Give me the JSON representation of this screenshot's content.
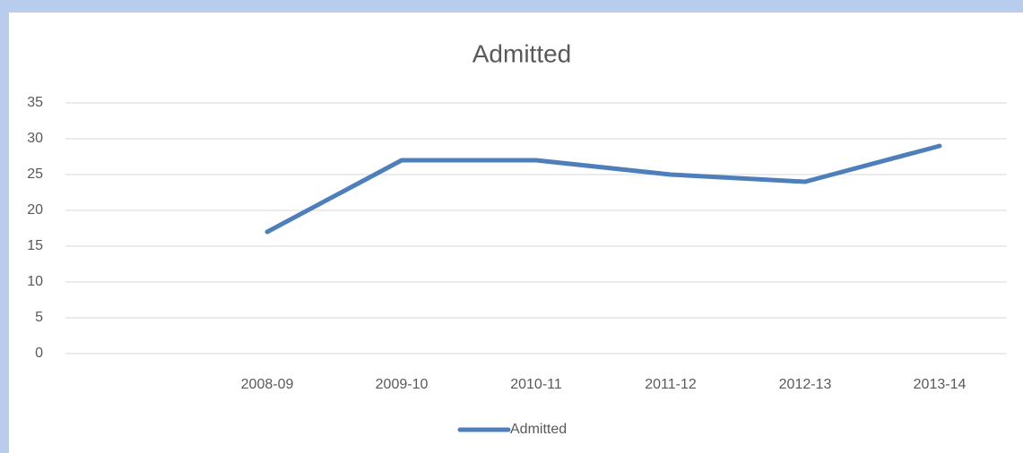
{
  "chart_data": {
    "type": "line",
    "title": "Admitted",
    "categories": [
      null,
      "2008-09",
      "2009-10",
      "2010-11",
      "2011-12",
      "2012-13",
      "2013-14"
    ],
    "series": [
      {
        "name": "Admitted",
        "color": "#4f7fba",
        "values": [
          null,
          17,
          27,
          27,
          25,
          24,
          29
        ]
      }
    ],
    "ylim": [
      0,
      35
    ],
    "yticks": [
      0,
      5,
      10,
      15,
      20,
      25,
      30,
      35
    ],
    "grid": true,
    "legend": "bottom"
  }
}
